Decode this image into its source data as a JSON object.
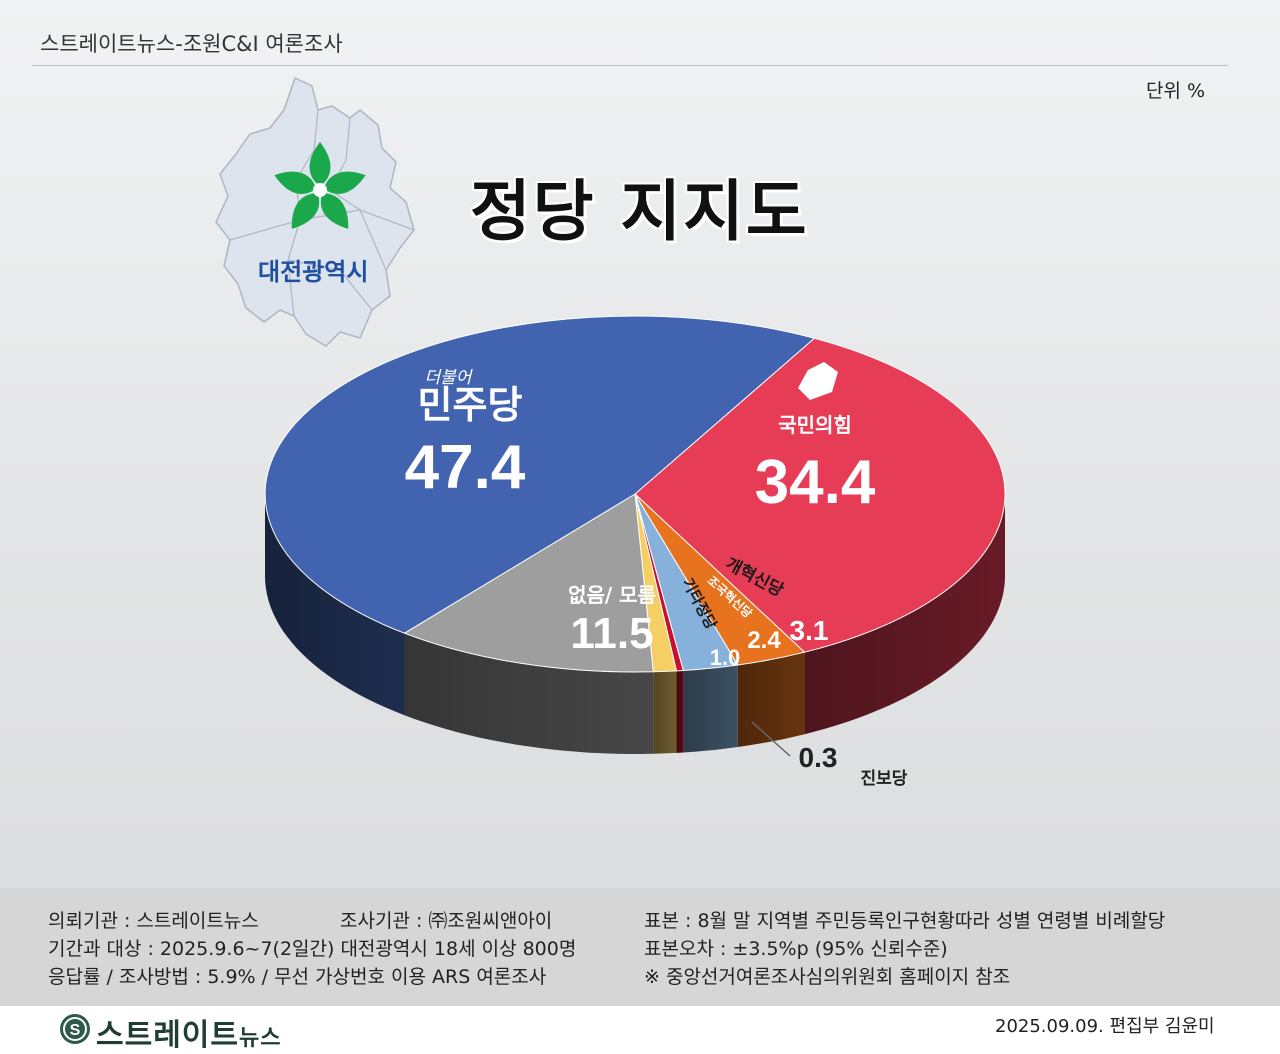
{
  "header": {
    "title": "스트레이트뉴스-조원C&I 여론조사"
  },
  "unit_label": "단위 %",
  "main_title": "정당 지지도",
  "region": {
    "name": "대전광역시"
  },
  "chart_data": {
    "type": "pie",
    "title": "정당 지지도",
    "unit": "단위 %",
    "slices": [
      {
        "name": "국민의힘",
        "value": 34.4,
        "value_label": "34.4",
        "color": "#e63c56"
      },
      {
        "name": "개혁신당",
        "value": 3.1,
        "value_label": "3.1",
        "color": "#e8731e"
      },
      {
        "name": "조국혁신당",
        "value": 2.4,
        "value_label": "2.4",
        "color": "#86b1db"
      },
      {
        "name": "진보당",
        "value": 0.3,
        "value_label": "0.3",
        "color": "#c8102e"
      },
      {
        "name": "기타정당",
        "value": 1.0,
        "value_label": "1.0",
        "color": "#f5cf63"
      },
      {
        "name": "없음/ 모름",
        "value": 11.5,
        "value_label": "11.5",
        "color": "#9e9e9e"
      },
      {
        "name": "민주당",
        "value": 47.4,
        "value_label": "47.4",
        "color": "#4263b0"
      }
    ],
    "party_prefix_labels": {
      "minju": "더불어"
    }
  },
  "footer": {
    "client": "의뢰기관 : 스트레이트뉴스",
    "agency": "조사기관 : ㈜조원씨앤아이",
    "sample": "표본 : 8월 말 지역별 주민등록인구현황따라 성별 연령별 비례할당",
    "period": "기간과 대상 : 2025.9.6~7(2일간) 대전광역시  18세 이상 800명",
    "error": "표본오차 : ±3.5%p (95% 신뢰수준)",
    "method": "응답률 / 조사방법 : 5.9% / 무선 가상번호 이용 ARS 여론조사",
    "reference": "※ 중앙선거여론조사심의위원회 홈페이지 참조"
  },
  "brand": {
    "main": "스트레이트",
    "sub": "뉴스"
  },
  "credit": "2025.09.09. 편집부 김윤미"
}
